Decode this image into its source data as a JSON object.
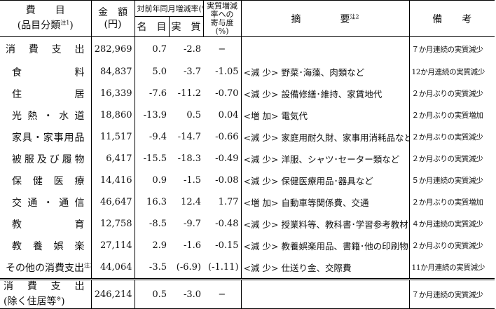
{
  "header": {
    "item_line1": "費　　目",
    "item_line2": "(品目分類",
    "item_note": "注1",
    "item_close": ")",
    "amount_line1": "金　額",
    "amount_line2": "(円)",
    "yoy_title": "対前年同月増減率(%)",
    "nominal": "名　目",
    "real": "実　質",
    "contrib_line1": "実質増減",
    "contrib_line2": "率への",
    "contrib_line3": "寄与度",
    "contrib_line4": "(%)",
    "summary": "摘　　　　要",
    "summary_note": "注2",
    "remarks": "備　　考"
  },
  "rows": [
    {
      "name": [
        "消",
        "費",
        "支",
        "出"
      ],
      "amount": "282,969",
      "nominal": "0.7",
      "real": "-2.8",
      "contrib": "−",
      "tag": "",
      "summary": "",
      "note": "７か月連続の実質減少"
    },
    {
      "name": [
        "食",
        "料"
      ],
      "amount": "84,837",
      "nominal": "5.0",
      "real": "-3.7",
      "contrib": "-1.05",
      "tag": "<減 少>",
      "summary": "野菜･海藻、肉類など",
      "note": "12か月連続の実質減少"
    },
    {
      "name": [
        "住",
        "居"
      ],
      "amount": "16,339",
      "nominal": "-7.6",
      "real": "-11.2",
      "contrib": "-0.70",
      "tag": "<減 少>",
      "summary": "設備修繕･維持、家賃地代",
      "note": "２か月ぶりの実質減少"
    },
    {
      "name": [
        "光",
        "熱",
        "・",
        "水",
        "道"
      ],
      "amount": "18,860",
      "nominal": "-13.9",
      "real": "0.5",
      "contrib": "0.04",
      "tag": "<増 加>",
      "summary": "電気代",
      "note": "２か月ぶりの実質増加"
    },
    {
      "name": [
        "家",
        "具",
        "・",
        "家",
        "事",
        "用",
        "品"
      ],
      "amount": "11,517",
      "nominal": "-9.4",
      "real": "-14.7",
      "contrib": "-0.66",
      "tag": "<減 少>",
      "summary": "家庭用耐久財、家事用消耗品など",
      "note": "２か月ぶりの実質減少"
    },
    {
      "name": [
        "被",
        "服",
        "及",
        "び",
        "履",
        "物"
      ],
      "amount": "6,417",
      "nominal": "-15.5",
      "real": "-18.3",
      "contrib": "-0.49",
      "tag": "<減 少>",
      "summary": "洋服、シャツ･セーター類など",
      "note": "２か月ぶりの実質減少"
    },
    {
      "name": [
        "保",
        "健",
        "医",
        "療"
      ],
      "amount": "14,416",
      "nominal": "0.9",
      "real": "-1.5",
      "contrib": "-0.08",
      "tag": "<減 少>",
      "summary": "保健医療用品･器具など",
      "note": "５か月連続の実質減少"
    },
    {
      "name": [
        "交",
        "通",
        "・",
        "通",
        "信"
      ],
      "amount": "46,647",
      "nominal": "16.3",
      "real": "12.4",
      "contrib": "1.77",
      "tag": "<増 加>",
      "summary": "自動車等関係費、交通",
      "note": "２か月ぶりの実質増加"
    },
    {
      "name": [
        "教",
        "育"
      ],
      "amount": "12,758",
      "nominal": "-8.5",
      "real": "-9.7",
      "contrib": "-0.48",
      "tag": "<減 少>",
      "summary": "授業料等、教科書･学習参考教材",
      "note": "４か月連続の実質減少"
    },
    {
      "name": [
        "教",
        "養",
        "娯",
        "楽"
      ],
      "amount": "27,114",
      "nominal": "2.9",
      "real": "-1.6",
      "contrib": "-0.15",
      "tag": "<減 少>",
      "summary": "教養娯楽用品、書籍･他の印刷物",
      "note": "２か月ぶりの実質減少"
    },
    {
      "name_text": "その他の消費支出",
      "name_note": "注3",
      "amount": "44,064",
      "nominal": "-3.5",
      "real": "(-6.9)",
      "contrib": "(-1.11)",
      "tag": "<減 少>",
      "summary": "仕送り金、交際費",
      "note": "11か月連続の実質減少"
    }
  ],
  "footer_row": {
    "line1": [
      "消",
      "費",
      "支",
      "出"
    ],
    "line2": "(除く住居等",
    "line2_note": "※",
    "line2_close": ")",
    "amount": "246,214",
    "nominal": "0.5",
    "real": "-3.0",
    "contrib": "−",
    "note": "７か月連続の実質減少"
  }
}
